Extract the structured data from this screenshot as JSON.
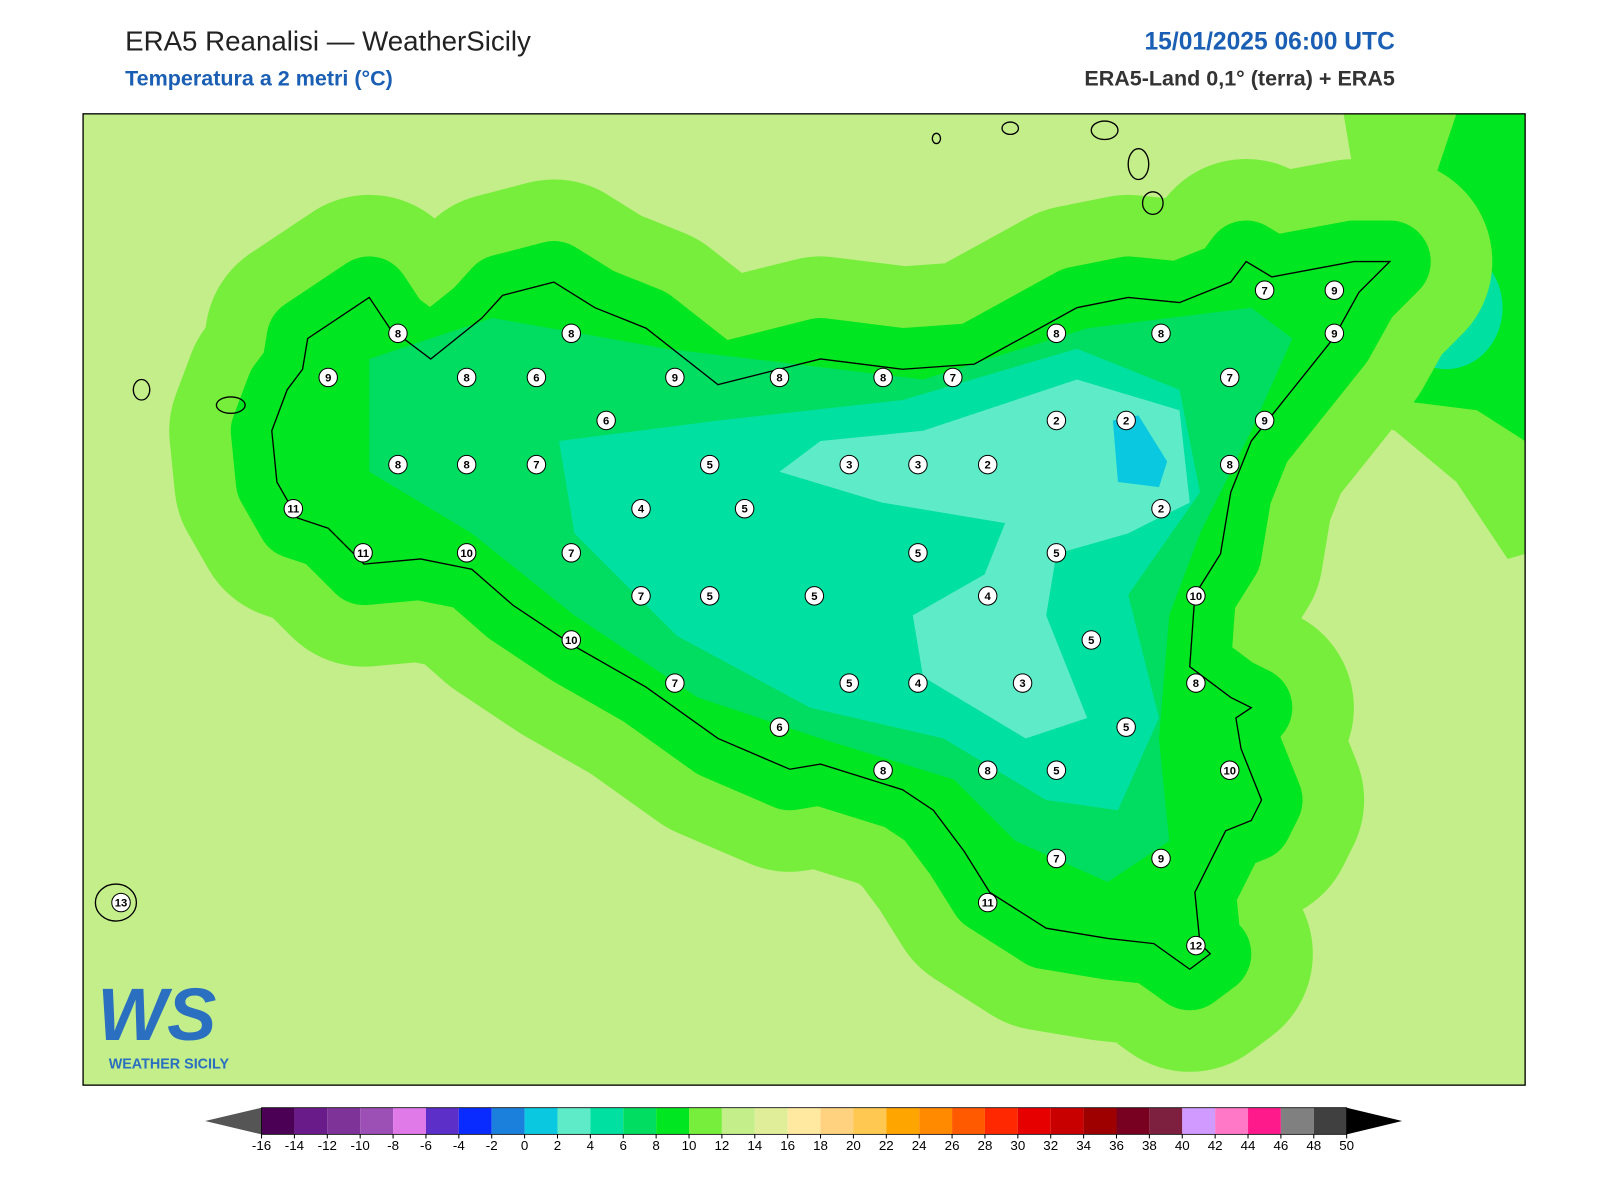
{
  "header": {
    "title": "ERA5 Reanalisi — WeatherSicily",
    "subtitle": "Temperatura a 2 metri (°C)",
    "datetime": "15/01/2025 06:00 UTC",
    "source": "ERA5-Land 0,1° (terra) + ERA5"
  },
  "stations": [
    8,
    8,
    9,
    8,
    6,
    9,
    8,
    8,
    7,
    8,
    8,
    7,
    9,
    9,
    7,
    6,
    2,
    2,
    9,
    8,
    8,
    7,
    5,
    3,
    3,
    2,
    8,
    11,
    4,
    5,
    2,
    11,
    10,
    7,
    5,
    5,
    7,
    5,
    5,
    4,
    10,
    10,
    5,
    7,
    5,
    4,
    3,
    8,
    6,
    5,
    8,
    8,
    5,
    10,
    7,
    9,
    13,
    11,
    12
  ],
  "colorbar": {
    "ticks": [
      -16,
      -14,
      -12,
      -10,
      -8,
      -6,
      -4,
      -2,
      0,
      2,
      4,
      6,
      8,
      10,
      12,
      14,
      16,
      18,
      20,
      22,
      24,
      26,
      28,
      30,
      32,
      34,
      36,
      38,
      40,
      42,
      44,
      46,
      48,
      50
    ],
    "colors": [
      "#4b0055",
      "#6a1b8a",
      "#7e3399",
      "#9c4fb5",
      "#e07ae8",
      "#5b2fc8",
      "#0a2bff",
      "#1a80db",
      "#0ac8e0",
      "#5eecc8",
      "#00e0a0",
      "#00dd60",
      "#00e620",
      "#78ee3c",
      "#c3ee8a",
      "#e0ee9a",
      "#ffe8a0",
      "#ffd280",
      "#ffc850",
      "#ffa500",
      "#ff8a00",
      "#ff5a00",
      "#ff2800",
      "#e60000",
      "#c80000",
      "#9e0000",
      "#780020",
      "#7d2040",
      "#d09aff",
      "#ff78c8",
      "#ff1a8c",
      "#808080",
      "#404040"
    ],
    "under_color": "#555555",
    "over_color": "#000000"
  },
  "logo": {
    "mark": "WS",
    "text": "WEATHER SICILY"
  }
}
